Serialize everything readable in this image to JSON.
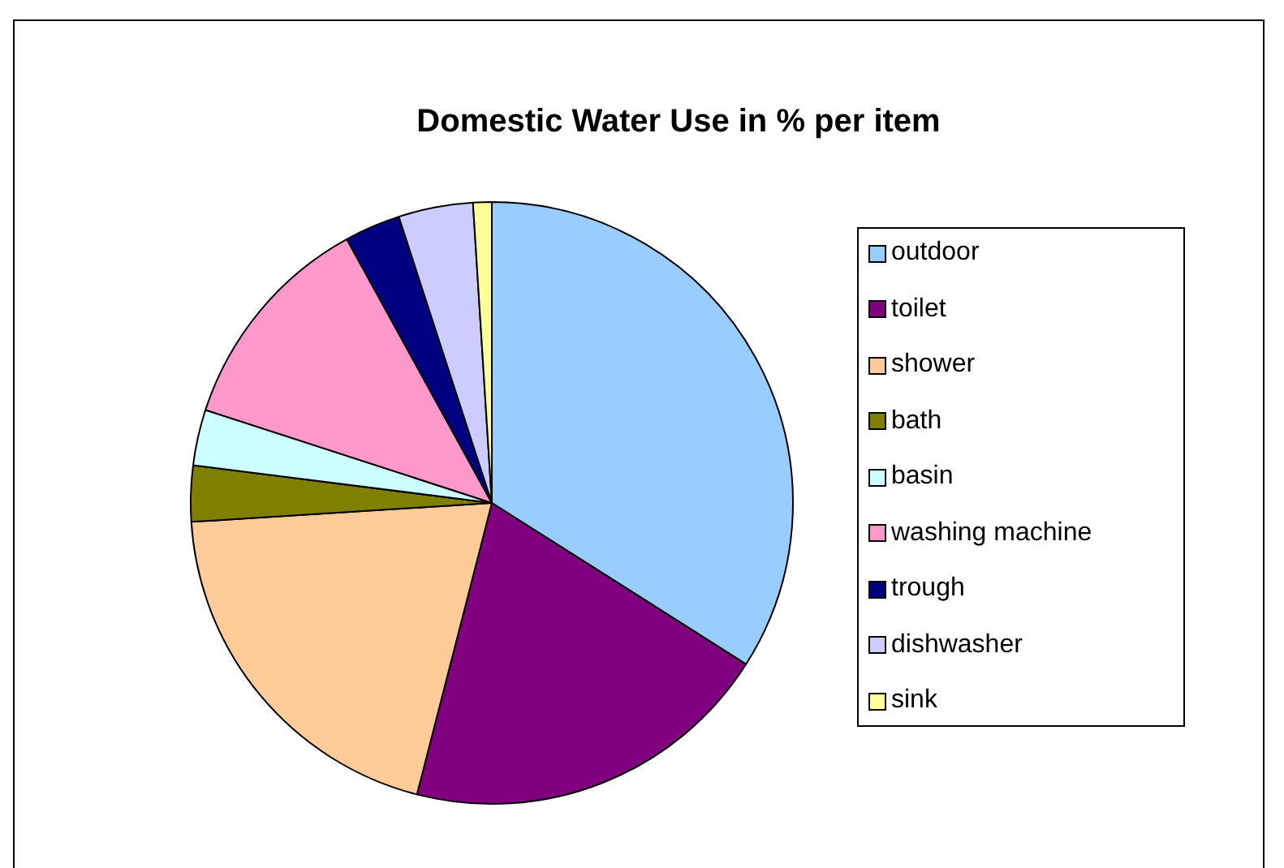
{
  "chart_data": {
    "type": "pie",
    "title": "Domestic Water Use in % per item",
    "categories": [
      "outdoor",
      "toilet",
      "shower",
      "bath",
      "basin",
      "washing machine",
      "trough",
      "dishwasher",
      "sink"
    ],
    "values": [
      34,
      20,
      20,
      3,
      3,
      12,
      3,
      4,
      1
    ],
    "colors": [
      "#99ccff",
      "#800080",
      "#ffcc99",
      "#808000",
      "#ccffff",
      "#ff99cc",
      "#000080",
      "#ccccff",
      "#ffff99"
    ],
    "legend": "right"
  }
}
